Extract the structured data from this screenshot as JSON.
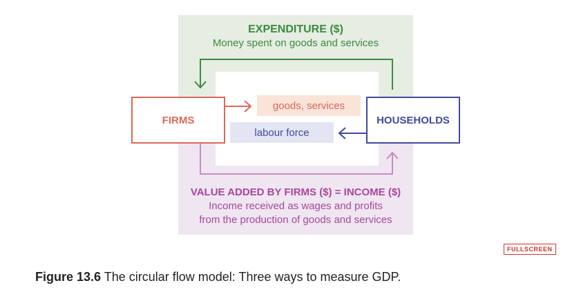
{
  "diagram": {
    "expenditure": {
      "title": "EXPENDITURE ($)",
      "subtitle": "Money spent on goods and services"
    },
    "firms_label": "FIRMS",
    "households_label": "HOUSEHOLDS",
    "goods_label": "goods, services",
    "labour_label": "labour force",
    "income": {
      "title": "VALUE ADDED BY FIRMS ($) = INCOME ($)",
      "subtitle_line1": "Income received as wages and profits",
      "subtitle_line2": "from the production of goods and services"
    },
    "colors": {
      "expenditure": "#3b8a3f",
      "firms": "#d9685a",
      "households": "#3f4a9c",
      "income": "#a8479b"
    }
  },
  "fullscreen_label": "FULLSCREEN",
  "caption": {
    "figure_label": "Figure 13.6",
    "text": " The circular flow model: Three ways to measure GDP."
  }
}
